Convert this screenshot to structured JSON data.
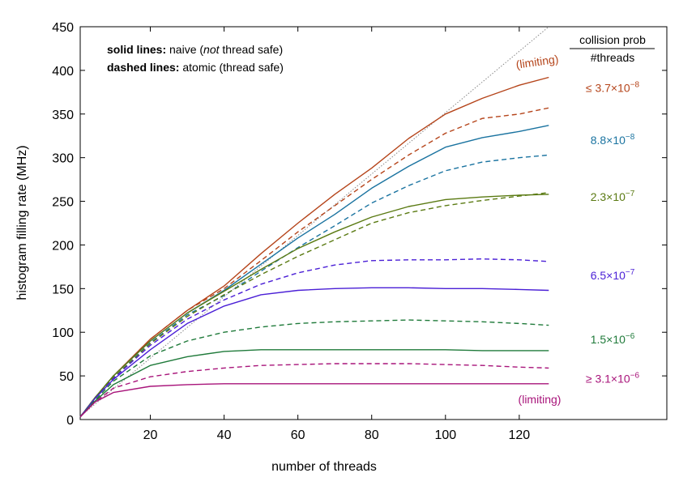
{
  "chart_data": {
    "type": "line",
    "title": "",
    "xlabel": "number of threads",
    "ylabel": "histogram filling rate (MHz)",
    "xlim": [
      1,
      160
    ],
    "ylim": [
      0,
      450
    ],
    "xticks": [
      20,
      40,
      60,
      80,
      100,
      120
    ],
    "yticks": [
      0,
      50,
      100,
      150,
      200,
      250,
      300,
      350,
      400,
      450
    ],
    "grid": false,
    "notes": {
      "solid_prefix": "solid lines:",
      "solid_text": " naive (",
      "solid_ital": "not",
      "solid_suffix": " thread safe)",
      "dashed_prefix": "dashed lines:",
      "dashed_text": " atomic (thread safe)"
    },
    "legend": {
      "header_top": "collision prob",
      "header_bottom": "#threads",
      "placement": "right"
    },
    "reference_line": {
      "name": "ideal",
      "x": [
        1,
        128
      ],
      "y": [
        3.5,
        450
      ],
      "color": "#888888",
      "style": "dotted"
    },
    "series": [
      {
        "group": 0,
        "style": "solid",
        "color": "#b5441a",
        "x": [
          1,
          5,
          10,
          20,
          30,
          40,
          50,
          60,
          70,
          80,
          90,
          100,
          110,
          120,
          128
        ],
        "y": [
          3,
          25,
          50,
          92,
          125,
          153,
          190,
          225,
          258,
          288,
          322,
          350,
          368,
          383,
          392
        ]
      },
      {
        "group": 0,
        "style": "dashed",
        "color": "#b5441a",
        "x": [
          1,
          5,
          10,
          20,
          30,
          40,
          50,
          60,
          70,
          80,
          90,
          100,
          110,
          120,
          128
        ],
        "y": [
          3,
          25,
          50,
          92,
          125,
          150,
          182,
          215,
          245,
          275,
          303,
          328,
          345,
          350,
          357
        ]
      },
      {
        "group": 1,
        "style": "solid",
        "color": "#1a73a0",
        "x": [
          1,
          5,
          10,
          20,
          30,
          40,
          50,
          60,
          70,
          80,
          90,
          100,
          110,
          120,
          128
        ],
        "y": [
          3,
          25,
          50,
          90,
          122,
          148,
          178,
          208,
          235,
          265,
          290,
          312,
          323,
          330,
          337
        ]
      },
      {
        "group": 1,
        "style": "dashed",
        "color": "#1a73a0",
        "x": [
          1,
          5,
          10,
          20,
          30,
          40,
          50,
          60,
          70,
          80,
          90,
          100,
          110,
          120,
          128
        ],
        "y": [
          3,
          25,
          48,
          88,
          120,
          142,
          170,
          197,
          222,
          248,
          268,
          285,
          295,
          300,
          303
        ]
      },
      {
        "group": 2,
        "style": "solid",
        "color": "#5a7a12",
        "x": [
          1,
          5,
          10,
          20,
          30,
          40,
          50,
          60,
          70,
          80,
          90,
          100,
          110,
          120,
          128
        ],
        "y": [
          3,
          25,
          50,
          90,
          122,
          147,
          172,
          196,
          215,
          232,
          244,
          252,
          255,
          257,
          258
        ]
      },
      {
        "group": 2,
        "style": "dashed",
        "color": "#5a7a12",
        "x": [
          1,
          5,
          10,
          20,
          30,
          40,
          50,
          60,
          70,
          80,
          90,
          100,
          110,
          120,
          128
        ],
        "y": [
          3,
          25,
          48,
          87,
          118,
          143,
          166,
          187,
          206,
          225,
          237,
          245,
          251,
          256,
          260
        ]
      },
      {
        "group": 3,
        "style": "solid",
        "color": "#4a1fd6",
        "x": [
          1,
          5,
          10,
          20,
          30,
          40,
          50,
          60,
          70,
          80,
          90,
          100,
          110,
          120,
          128
        ],
        "y": [
          3,
          24,
          46,
          80,
          110,
          130,
          143,
          148,
          150,
          151,
          151,
          150,
          150,
          149,
          148
        ]
      },
      {
        "group": 3,
        "style": "dashed",
        "color": "#4a1fd6",
        "x": [
          1,
          5,
          10,
          20,
          30,
          40,
          50,
          60,
          70,
          80,
          90,
          100,
          110,
          120,
          128
        ],
        "y": [
          3,
          24,
          47,
          85,
          115,
          137,
          155,
          168,
          177,
          182,
          183,
          183,
          184,
          183,
          181
        ]
      },
      {
        "group": 4,
        "style": "solid",
        "color": "#1f7a3a",
        "x": [
          1,
          5,
          10,
          20,
          30,
          40,
          50,
          60,
          70,
          80,
          90,
          100,
          110,
          120,
          128
        ],
        "y": [
          3,
          21,
          40,
          62,
          72,
          78,
          80,
          80,
          80,
          80,
          80,
          80,
          79,
          79,
          79
        ]
      },
      {
        "group": 4,
        "style": "dashed",
        "color": "#1f7a3a",
        "x": [
          1,
          5,
          10,
          20,
          30,
          40,
          50,
          60,
          70,
          80,
          90,
          100,
          110,
          120,
          128
        ],
        "y": [
          3,
          22,
          44,
          73,
          90,
          100,
          106,
          110,
          112,
          113,
          114,
          113,
          112,
          110,
          108
        ]
      },
      {
        "group": 5,
        "style": "solid",
        "color": "#a8147a",
        "x": [
          1,
          5,
          10,
          20,
          30,
          40,
          50,
          60,
          70,
          80,
          90,
          100,
          110,
          120,
          128
        ],
        "y": [
          3,
          20,
          31,
          38,
          40,
          41,
          41,
          41,
          41,
          41,
          41,
          41,
          41,
          41,
          41
        ]
      },
      {
        "group": 5,
        "style": "dashed",
        "color": "#a8147a",
        "x": [
          1,
          5,
          10,
          20,
          30,
          40,
          50,
          60,
          70,
          80,
          90,
          100,
          110,
          120,
          128
        ],
        "y": [
          3,
          20,
          36,
          49,
          55,
          59,
          62,
          63,
          64,
          64,
          64,
          63,
          62,
          60,
          59
        ]
      }
    ],
    "labels": [
      {
        "text": "(limiting)",
        "color": "#b5441a",
        "at_y": 410,
        "anchor": "rot"
      },
      {
        "text": "≤ 3.7×10",
        "exp": "−8",
        "color": "#b5441a",
        "at_y": 380
      },
      {
        "text": "8.8×10",
        "exp": "−8",
        "color": "#1a73a0",
        "at_y": 320
      },
      {
        "text": "2.3×10",
        "exp": "−7",
        "color": "#5a7a12",
        "at_y": 255
      },
      {
        "text": "6.5×10",
        "exp": "−7",
        "color": "#4a1fd6",
        "at_y": 165
      },
      {
        "text": "1.5×10",
        "exp": "−6",
        "color": "#1f7a3a",
        "at_y": 92
      },
      {
        "text": "≥ 3.1×10",
        "exp": "−6",
        "color": "#a8147a",
        "at_y": 47
      },
      {
        "text": "(limiting)",
        "color": "#a8147a",
        "at_y": 23
      }
    ]
  }
}
